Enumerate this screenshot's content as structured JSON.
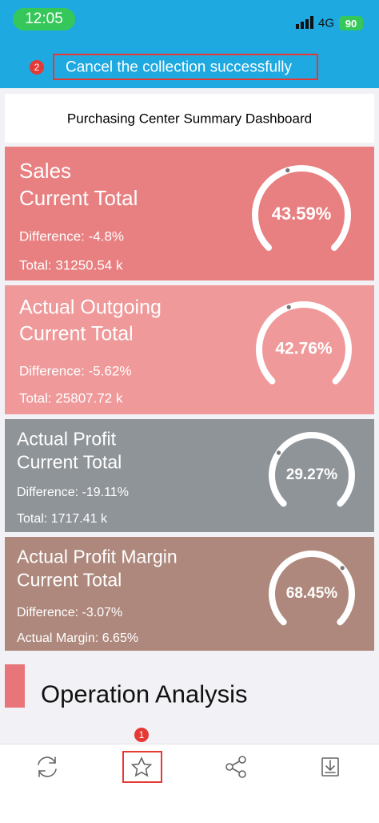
{
  "status_bar": {
    "time": "12:05",
    "network": "4G",
    "battery": "90"
  },
  "toast": {
    "badge": "2",
    "message": "Cancel the collection successfully"
  },
  "title": "Purchasing Center Summary Dashboard",
  "cards": [
    {
      "title_lines": [
        "Sales",
        "Current Total"
      ],
      "difference": "Difference: -4.8%",
      "total": "Total: 31250.54 k",
      "gauge": {
        "value": 43.59,
        "label": "43.59%"
      }
    },
    {
      "title_lines": [
        "Actual Outgoing",
        "Current Total"
      ],
      "difference": "Difference: -5.62%",
      "total": "Total: 25807.72 k",
      "gauge": {
        "value": 42.76,
        "label": "42.76%"
      }
    },
    {
      "title_lines": [
        "Actual Profit",
        "Current Total"
      ],
      "difference": "Difference: -19.11%",
      "total": "Total: 1717.41 k",
      "gauge": {
        "value": 29.27,
        "label": "29.27%"
      }
    },
    {
      "title_lines": [
        "Actual Profit Margin",
        "Current Total"
      ],
      "difference": "Difference: -3.07%",
      "total": "Actual Margin: 6.65%",
      "gauge": {
        "value": 68.45,
        "label": "68.45%"
      }
    }
  ],
  "section_title": "Operation Analysis",
  "tab_bar": {
    "badge": "1"
  }
}
